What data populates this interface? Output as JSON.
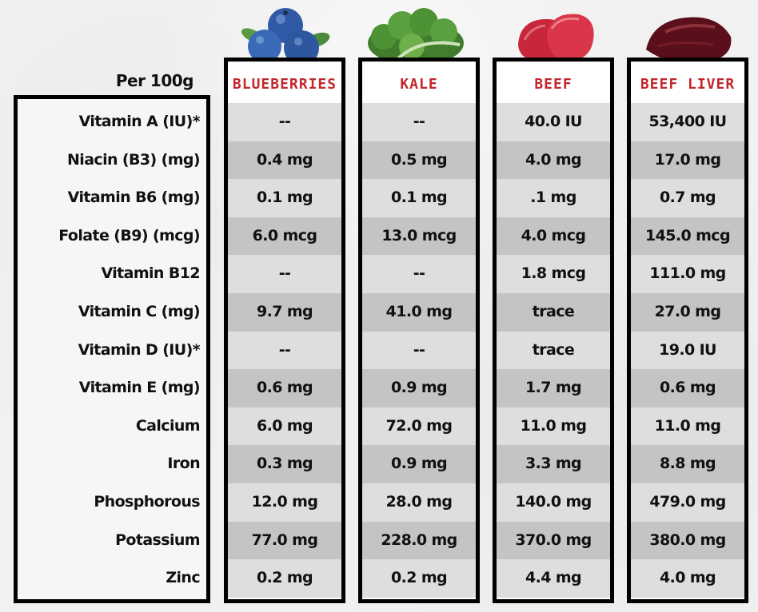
{
  "header": {
    "per_label": "Per 100g"
  },
  "foods": [
    {
      "name": "BLUEBERRIES",
      "icon": "blueberries-icon"
    },
    {
      "name": "KALE",
      "icon": "kale-icon"
    },
    {
      "name": "BEEF",
      "icon": "beef-icon"
    },
    {
      "name": "BEEF LIVER",
      "icon": "beef-liver-icon"
    }
  ],
  "nutrients": [
    "Vitamin A (IU)*",
    "Niacin (B3) (mg)",
    "Vitamin B6 (mg)",
    "Folate (B9) (mcg)",
    "Vitamin B12",
    "Vitamin C (mg)",
    "Vitamin D (IU)*",
    "Vitamin E (mg)",
    "Calcium",
    "Iron",
    "Phosphorous",
    "Potassium",
    "Zinc"
  ],
  "values": [
    [
      "--",
      "0.4 mg",
      "0.1 mg",
      "6.0 mcg",
      "--",
      "9.7 mg",
      "--",
      "0.6 mg",
      "6.0 mg",
      "0.3 mg",
      "12.0 mg",
      "77.0 mg",
      "0.2 mg"
    ],
    [
      "--",
      "0.5 mg",
      "0.1 mg",
      "13.0 mcg",
      "--",
      "41.0 mg",
      "--",
      "0.9 mg",
      "72.0 mg",
      "0.9 mg",
      "28.0 mg",
      "228.0 mg",
      "0.2 mg"
    ],
    [
      "40.0 IU",
      "4.0 mg",
      ".1 mg",
      "4.0 mcg",
      "1.8 mcg",
      "trace",
      "trace",
      "1.7 mg",
      "11.0 mg",
      "3.3 mg",
      "140.0 mg",
      "370.0 mg",
      "4.4 mg"
    ],
    [
      "53,400 IU",
      "17.0 mg",
      "0.7 mg",
      "145.0  mcg",
      "111.0 mg",
      "27.0 mg",
      "19.0 IU",
      "0.6 mg",
      "11.0 mg",
      "8.8 mg",
      "479.0 mg",
      "380.0 mg",
      "4.0 mg"
    ]
  ],
  "colors": {
    "header_red": "#c1272d",
    "row_light": "#dedede",
    "row_dark": "#c4c4c4"
  }
}
